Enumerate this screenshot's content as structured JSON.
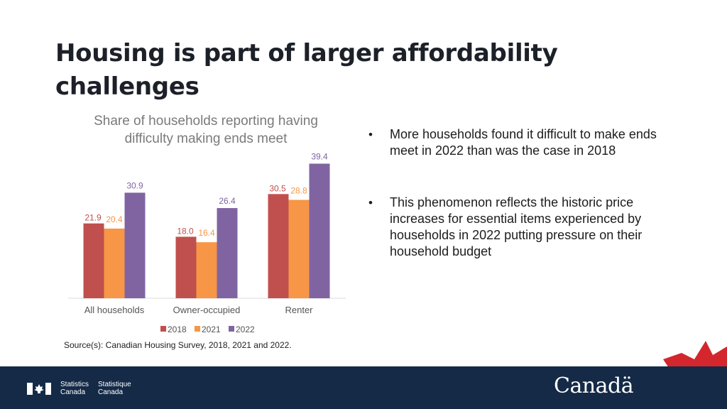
{
  "slide": {
    "title": "Housing is part of larger affordability challenges",
    "bullets": [
      "More households found it difficult to make ends meet in 2022 than was the case in 2018",
      "This phenomenon reflects the historic price increases for essential items experienced by households in 2022 putting pressure on their household budget"
    ],
    "source": "Source(s): Canadian Housing Survey, 2018, 2021 and 2022."
  },
  "chart_data": {
    "type": "bar",
    "title": "Share of households reporting having difficulty making ends meet",
    "categories": [
      "All households",
      "Owner-occupied",
      "Renter"
    ],
    "series": [
      {
        "name": "2018",
        "color": "#c0504d",
        "values": [
          21.9,
          18.0,
          30.5
        ],
        "labels": [
          "21.9",
          "18.0",
          "30.5"
        ]
      },
      {
        "name": "2021",
        "color": "#f79646",
        "values": [
          20.4,
          16.4,
          28.8
        ],
        "labels": [
          "20.4",
          "16.4",
          "28.8"
        ]
      },
      {
        "name": "2022",
        "color": "#8064a2",
        "values": [
          30.9,
          26.4,
          39.4
        ],
        "labels": [
          "30.9",
          "26.4",
          "39.4"
        ]
      }
    ],
    "ylim": [
      0,
      42
    ],
    "legend": "bottom",
    "grid": false
  },
  "footer": {
    "wordmark_en": [
      "Statistics",
      "Canada"
    ],
    "wordmark_fr": [
      "Statistique",
      "Canada"
    ],
    "canada_wordmark": "Canadä",
    "background": "#142a47",
    "accent": "#d3272d"
  }
}
